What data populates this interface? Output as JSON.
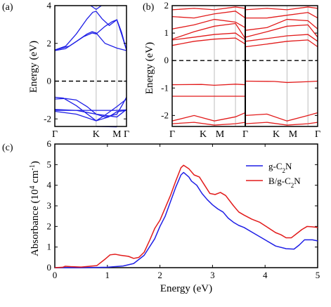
{
  "colors": {
    "blue": "#1f1fe6",
    "red": "#e21b1b",
    "gray": "#bdbdbd",
    "black": "#000000"
  },
  "chart_data": [
    {
      "panel_label": "(a)",
      "type": "line",
      "ylabel": "Energy (eV)",
      "ylim": [
        -2.4,
        4
      ],
      "yticks": [
        -2,
        0,
        2,
        4
      ],
      "xticklabels": [
        "Γ",
        "K",
        "M",
        "Γ"
      ],
      "kpoints": [
        0,
        0.577,
        0.866,
        1.0
      ],
      "fermi_level": 0,
      "color_key": "blue",
      "bands": [
        [
          [
            0,
            -2.45
          ],
          [
            0.3,
            -2.45
          ],
          [
            0.577,
            -2.4
          ],
          [
            0.866,
            -2.42
          ],
          [
            1,
            -2.45
          ]
        ],
        [
          [
            0,
            -1.6
          ],
          [
            0.3,
            -1.75
          ],
          [
            0.577,
            -2.1
          ],
          [
            0.75,
            -1.9
          ],
          [
            0.866,
            -1.62
          ],
          [
            1,
            -1.55
          ]
        ],
        [
          [
            0,
            -1.55
          ],
          [
            0.3,
            -1.55
          ],
          [
            0.577,
            -1.55
          ],
          [
            0.866,
            -1.55
          ],
          [
            1,
            -1.52
          ]
        ],
        [
          [
            0,
            -1.5
          ],
          [
            0.3,
            -1.55
          ],
          [
            0.577,
            -1.75
          ],
          [
            0.866,
            -1.9
          ],
          [
            1,
            -1.5
          ]
        ],
        [
          [
            0,
            -0.95
          ],
          [
            0.15,
            -0.92
          ],
          [
            0.3,
            -1.0
          ],
          [
            0.45,
            -1.35
          ],
          [
            0.577,
            -1.75
          ],
          [
            0.7,
            -1.9
          ],
          [
            0.866,
            -1.75
          ],
          [
            0.95,
            -1.2
          ],
          [
            1,
            -0.85
          ]
        ],
        [
          [
            0,
            -0.85
          ],
          [
            0.12,
            -0.9
          ],
          [
            0.3,
            -1.3
          ],
          [
            0.577,
            -2.1
          ],
          [
            0.7,
            -1.8
          ],
          [
            0.866,
            -1.35
          ],
          [
            1,
            -0.95
          ]
        ],
        [
          [
            0,
            1.62
          ],
          [
            0.15,
            1.72
          ],
          [
            0.3,
            2.1
          ],
          [
            0.45,
            2.5
          ],
          [
            0.52,
            2.62
          ],
          [
            0.577,
            2.55
          ],
          [
            0.7,
            2.0
          ],
          [
            0.866,
            1.75
          ],
          [
            1,
            1.62
          ]
        ],
        [
          [
            0,
            1.65
          ],
          [
            0.2,
            1.85
          ],
          [
            0.4,
            2.35
          ],
          [
            0.52,
            2.55
          ],
          [
            0.577,
            2.5
          ],
          [
            0.7,
            2.9
          ],
          [
            0.8,
            3.15
          ],
          [
            0.866,
            3.25
          ],
          [
            0.93,
            2.6
          ],
          [
            1,
            1.65
          ]
        ],
        [
          [
            0,
            1.65
          ],
          [
            0.15,
            1.85
          ],
          [
            0.3,
            2.5
          ],
          [
            0.45,
            3.3
          ],
          [
            0.53,
            3.65
          ],
          [
            0.577,
            3.7
          ],
          [
            0.66,
            3.3
          ],
          [
            0.76,
            2.95
          ],
          [
            0.866,
            3.25
          ],
          [
            0.93,
            2.5
          ],
          [
            1,
            1.65
          ]
        ],
        [
          [
            0.5,
            4.0
          ],
          [
            0.577,
            3.8
          ],
          [
            0.65,
            4.0
          ]
        ]
      ]
    },
    {
      "panel_label": "(b)",
      "type": "line",
      "ylim": [
        -2.4,
        2
      ],
      "yticks": [
        -2,
        -1,
        0,
        1,
        2
      ],
      "xticklabels": [
        "Γ",
        "K",
        "M",
        "Γ",
        "K",
        "M",
        "Γ"
      ],
      "kpoints_left": [
        0,
        0.577,
        0.866,
        1.0
      ],
      "kpoints_right": [
        0,
        0.577,
        0.866,
        1.0
      ],
      "fermi_level": 0,
      "color_key": "red",
      "bands_left": [
        [
          [
            0,
            -1.3
          ],
          [
            1,
            -1.3
          ]
        ],
        [
          [
            0,
            -0.88
          ],
          [
            0.4,
            -0.87
          ],
          [
            0.577,
            -0.9
          ],
          [
            0.866,
            -0.86
          ],
          [
            1,
            -0.88
          ]
        ],
        [
          [
            0,
            -2.2
          ],
          [
            0.3,
            -2.0
          ],
          [
            0.577,
            -2.2
          ],
          [
            0.866,
            -2.05
          ],
          [
            1,
            -1.9
          ]
        ],
        [
          [
            0,
            -2.3
          ],
          [
            0.3,
            -2.25
          ],
          [
            0.577,
            -2.35
          ],
          [
            0.866,
            -2.3
          ],
          [
            1,
            -2.25
          ]
        ],
        [
          [
            0,
            0.55
          ],
          [
            0.3,
            0.7
          ],
          [
            0.577,
            0.78
          ],
          [
            0.866,
            0.82
          ],
          [
            1,
            0.6
          ]
        ],
        [
          [
            0,
            0.75
          ],
          [
            0.3,
            0.85
          ],
          [
            0.577,
            0.95
          ],
          [
            0.866,
            1.0
          ],
          [
            1,
            0.75
          ]
        ],
        [
          [
            0,
            0.78
          ],
          [
            0.3,
            1.05
          ],
          [
            0.577,
            1.25
          ],
          [
            0.866,
            1.35
          ],
          [
            1,
            0.8
          ]
        ],
        [
          [
            0,
            1.15
          ],
          [
            0.3,
            1.3
          ],
          [
            0.577,
            1.5
          ],
          [
            0.866,
            1.4
          ],
          [
            1,
            1.2
          ]
        ],
        [
          [
            0,
            1.6
          ],
          [
            0.3,
            1.55
          ],
          [
            0.577,
            1.7
          ],
          [
            0.866,
            1.8
          ],
          [
            1,
            1.55
          ]
        ],
        [
          [
            0,
            1.85
          ],
          [
            0.3,
            1.9
          ],
          [
            0.577,
            1.85
          ],
          [
            0.866,
            1.95
          ],
          [
            1,
            1.9
          ]
        ]
      ],
      "bands_right": [
        [
          [
            0,
            -0.75
          ],
          [
            0.4,
            -0.76
          ],
          [
            0.577,
            -0.8
          ],
          [
            0.866,
            -0.77
          ],
          [
            1,
            -0.75
          ]
        ],
        [
          [
            0,
            -2.0
          ],
          [
            0.3,
            -1.95
          ],
          [
            0.577,
            -2.2
          ],
          [
            0.866,
            -2.0
          ],
          [
            1,
            -1.9
          ]
        ],
        [
          [
            0,
            -2.3
          ],
          [
            0.3,
            -2.25
          ],
          [
            0.577,
            -2.35
          ],
          [
            0.866,
            -2.3
          ],
          [
            1,
            -2.25
          ]
        ],
        [
          [
            0,
            0.5
          ],
          [
            0.3,
            0.6
          ],
          [
            0.577,
            0.7
          ],
          [
            0.866,
            0.75
          ],
          [
            1,
            0.5
          ]
        ],
        [
          [
            0,
            0.7
          ],
          [
            0.3,
            0.8
          ],
          [
            0.577,
            0.9
          ],
          [
            0.866,
            0.95
          ],
          [
            1,
            0.7
          ]
        ],
        [
          [
            0,
            0.85
          ],
          [
            0.3,
            1.05
          ],
          [
            0.577,
            1.25
          ],
          [
            0.866,
            1.3
          ],
          [
            1,
            0.85
          ]
        ],
        [
          [
            0,
            1.1
          ],
          [
            0.3,
            1.2
          ],
          [
            0.577,
            1.5
          ],
          [
            0.866,
            1.45
          ],
          [
            1,
            1.15
          ]
        ],
        [
          [
            0,
            1.55
          ],
          [
            0.3,
            1.55
          ],
          [
            0.577,
            1.65
          ],
          [
            0.866,
            1.75
          ],
          [
            1,
            1.55
          ]
        ],
        [
          [
            0,
            1.85
          ],
          [
            0.3,
            1.9
          ],
          [
            0.577,
            1.85
          ],
          [
            0.866,
            1.95
          ],
          [
            1,
            1.9
          ]
        ]
      ]
    },
    {
      "panel_label": "(c)",
      "type": "line",
      "xlabel": "Energy (eV)",
      "ylabel_main": "Absorbance (10",
      "ylabel_sup": "4",
      "ylabel_unit": " cm",
      "ylabel_sup2": "-1",
      "ylabel_end": ")",
      "xlim": [
        0,
        5
      ],
      "ylim": [
        0,
        6
      ],
      "xticks": [
        0,
        1,
        2,
        3,
        4,
        5
      ],
      "yticks": [
        0,
        1,
        2,
        3,
        4,
        5,
        6
      ],
      "legend_position": "top-right",
      "series": [
        {
          "name_base": "g-C",
          "name_sub": "2",
          "name_end": "N",
          "color_key": "blue",
          "points": [
            [
              0,
              0
            ],
            [
              0.5,
              0.0
            ],
            [
              1.0,
              0.02
            ],
            [
              1.3,
              0.08
            ],
            [
              1.5,
              0.2
            ],
            [
              1.7,
              0.6
            ],
            [
              1.9,
              1.4
            ],
            [
              2.0,
              2.0
            ],
            [
              2.1,
              2.5
            ],
            [
              2.2,
              3.2
            ],
            [
              2.3,
              3.9
            ],
            [
              2.4,
              4.5
            ],
            [
              2.45,
              4.62
            ],
            [
              2.55,
              4.4
            ],
            [
              2.6,
              4.2
            ],
            [
              2.7,
              4.0
            ],
            [
              2.8,
              3.6
            ],
            [
              2.9,
              3.3
            ],
            [
              3.0,
              3.05
            ],
            [
              3.1,
              2.85
            ],
            [
              3.2,
              2.7
            ],
            [
              3.3,
              2.4
            ],
            [
              3.4,
              2.2
            ],
            [
              3.5,
              2.05
            ],
            [
              3.6,
              1.95
            ],
            [
              3.8,
              1.65
            ],
            [
              4.0,
              1.35
            ],
            [
              4.2,
              1.05
            ],
            [
              4.4,
              0.92
            ],
            [
              4.55,
              0.9
            ],
            [
              4.65,
              1.1
            ],
            [
              4.75,
              1.35
            ],
            [
              4.9,
              1.35
            ],
            [
              5.0,
              1.3
            ]
          ]
        },
        {
          "name_base": "B/g-C",
          "name_sub": "2",
          "name_end": "N",
          "color_key": "red",
          "points": [
            [
              0,
              0
            ],
            [
              0.15,
              0.02
            ],
            [
              0.2,
              0.07
            ],
            [
              0.3,
              0.05
            ],
            [
              0.5,
              0.03
            ],
            [
              0.8,
              0.1
            ],
            [
              0.95,
              0.4
            ],
            [
              1.05,
              0.62
            ],
            [
              1.15,
              0.65
            ],
            [
              1.25,
              0.6
            ],
            [
              1.4,
              0.55
            ],
            [
              1.5,
              0.45
            ],
            [
              1.6,
              0.5
            ],
            [
              1.7,
              0.75
            ],
            [
              1.8,
              1.3
            ],
            [
              1.9,
              1.9
            ],
            [
              2.0,
              2.3
            ],
            [
              2.1,
              2.9
            ],
            [
              2.2,
              3.5
            ],
            [
              2.3,
              4.2
            ],
            [
              2.4,
              4.85
            ],
            [
              2.45,
              4.97
            ],
            [
              2.55,
              4.8
            ],
            [
              2.65,
              4.5
            ],
            [
              2.75,
              4.4
            ],
            [
              2.85,
              4.0
            ],
            [
              2.95,
              3.6
            ],
            [
              3.05,
              3.55
            ],
            [
              3.15,
              3.65
            ],
            [
              3.25,
              3.5
            ],
            [
              3.4,
              3.0
            ],
            [
              3.5,
              2.7
            ],
            [
              3.6,
              2.55
            ],
            [
              3.75,
              2.35
            ],
            [
              3.9,
              2.2
            ],
            [
              4.05,
              1.95
            ],
            [
              4.2,
              1.7
            ],
            [
              4.3,
              1.6
            ],
            [
              4.4,
              1.45
            ],
            [
              4.5,
              1.45
            ],
            [
              4.6,
              1.65
            ],
            [
              4.7,
              1.85
            ],
            [
              4.8,
              2.0
            ],
            [
              4.9,
              1.98
            ],
            [
              5.0,
              1.95
            ]
          ]
        }
      ]
    }
  ]
}
